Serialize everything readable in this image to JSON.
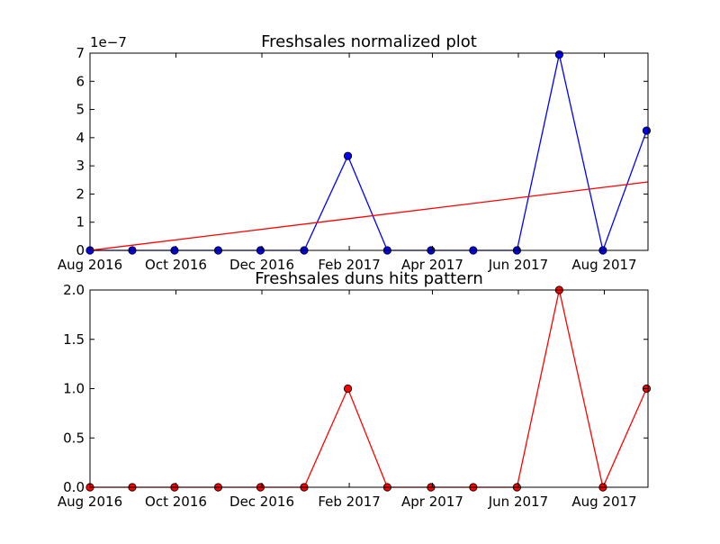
{
  "chart_data": [
    {
      "type": "line",
      "title": "Freshsales normalized plot",
      "offset_label": "1e−7",
      "xlabel": "",
      "ylabel": "",
      "x_ticks": [
        "Aug 2016",
        "Oct 2016",
        "Dec 2016",
        "Feb 2017",
        "Apr 2017",
        "Jun 2017",
        "Aug 2017"
      ],
      "x_tick_dates": [
        "2016-08-01",
        "2016-10-01",
        "2016-12-01",
        "2017-02-01",
        "2017-04-01",
        "2017-06-01",
        "2017-08-01"
      ],
      "xlim": [
        "2016-08-01",
        "2017-09-01"
      ],
      "y_ticks": [
        "0",
        "1",
        "2",
        "3",
        "4",
        "5",
        "6",
        "7"
      ],
      "ylim": [
        0,
        7e-07
      ],
      "grid": false,
      "series": [
        {
          "color": "#0000ff",
          "marker": "circle",
          "x": [
            "2016-08-01",
            "2016-08-31",
            "2016-09-30",
            "2016-10-31",
            "2016-11-30",
            "2016-12-31",
            "2017-01-31",
            "2017-02-28",
            "2017-03-31",
            "2017-04-30",
            "2017-05-31",
            "2017-06-30",
            "2017-07-31",
            "2017-08-31"
          ],
          "values": [
            0,
            0,
            0,
            0,
            0,
            0,
            3.35e-07,
            0,
            0,
            0,
            0,
            6.95e-07,
            0,
            4.25e-07
          ]
        },
        {
          "color": "#ff0000",
          "marker": "none",
          "x": [
            "2016-08-01",
            "2017-09-01"
          ],
          "values": [
            0,
            2.43e-07
          ]
        }
      ]
    },
    {
      "type": "line",
      "title": "Freshsales duns hits pattern",
      "xlabel": "",
      "ylabel": "",
      "x_ticks": [
        "Aug 2016",
        "Oct 2016",
        "Dec 2016",
        "Feb 2017",
        "Apr 2017",
        "Jun 2017",
        "Aug 2017"
      ],
      "x_tick_dates": [
        "2016-08-01",
        "2016-10-01",
        "2016-12-01",
        "2017-02-01",
        "2017-04-01",
        "2017-06-01",
        "2017-08-01"
      ],
      "xlim": [
        "2016-08-01",
        "2017-09-01"
      ],
      "y_ticks": [
        "0.0",
        "0.5",
        "1.0",
        "1.5",
        "2.0"
      ],
      "ylim": [
        0,
        2
      ],
      "grid": false,
      "series": [
        {
          "color": "#ff0000",
          "marker": "circle",
          "x": [
            "2016-08-01",
            "2016-08-31",
            "2016-09-30",
            "2016-10-31",
            "2016-11-30",
            "2016-12-31",
            "2017-01-31",
            "2017-02-28",
            "2017-03-31",
            "2017-04-30",
            "2017-05-31",
            "2017-06-30",
            "2017-07-31",
            "2017-08-31"
          ],
          "values": [
            0,
            0,
            0,
            0,
            0,
            0,
            1,
            0,
            0,
            0,
            0,
            2,
            0,
            1
          ]
        }
      ]
    }
  ]
}
